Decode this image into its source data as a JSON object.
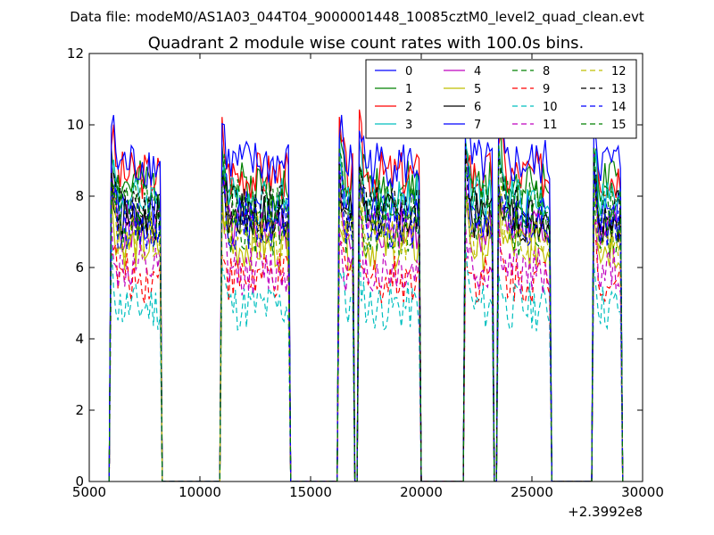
{
  "chart_data": {
    "type": "line",
    "supertitle": "Data file: modeM0/AS1A03_044T04_9000001448_10085cztM0_level2_quad_clean.evt",
    "title": "Quadrant 2 module wise count rates with 100.0s bins.",
    "xlabel": "",
    "ylabel": "",
    "xlim": [
      5000,
      30000
    ],
    "ylim": [
      0,
      12
    ],
    "x_offset_label": "+2.3992e8",
    "xticks": [
      5000,
      10000,
      15000,
      20000,
      25000,
      30000
    ],
    "yticks": [
      0,
      2,
      4,
      6,
      8,
      10,
      12
    ],
    "grid": false,
    "legend": {
      "placement": "top-right",
      "columns": 4
    },
    "gti": [
      [
        6000,
        8200
      ],
      [
        11000,
        14000
      ],
      [
        16300,
        16900
      ],
      [
        17200,
        19900
      ],
      [
        22000,
        23200
      ],
      [
        23500,
        25800
      ],
      [
        27800,
        29000
      ]
    ],
    "series": [
      {
        "name": "0",
        "color": "#0000ff",
        "dash": "solid",
        "level": 7.5,
        "seed": 1
      },
      {
        "name": "1",
        "color": "#008000",
        "dash": "solid",
        "level": 8.3,
        "seed": 2
      },
      {
        "name": "2",
        "color": "#ff0000",
        "dash": "solid",
        "level": 8.6,
        "seed": 3
      },
      {
        "name": "3",
        "color": "#00bfbf",
        "dash": "solid",
        "level": 7.9,
        "seed": 4
      },
      {
        "name": "4",
        "color": "#bf00bf",
        "dash": "solid",
        "level": 7.1,
        "seed": 5
      },
      {
        "name": "5",
        "color": "#bfbf00",
        "dash": "solid",
        "level": 6.6,
        "seed": 6
      },
      {
        "name": "6",
        "color": "#000000",
        "dash": "solid",
        "level": 7.4,
        "seed": 7
      },
      {
        "name": "7",
        "color": "#0000ff",
        "dash": "solid",
        "level": 8.9,
        "seed": 8
      },
      {
        "name": "8",
        "color": "#008000",
        "dash": "dashed",
        "level": 7.0,
        "seed": 9
      },
      {
        "name": "9",
        "color": "#ff0000",
        "dash": "dashed",
        "level": 5.7,
        "seed": 10
      },
      {
        "name": "10",
        "color": "#00bfbf",
        "dash": "dashed",
        "level": 4.9,
        "seed": 11
      },
      {
        "name": "11",
        "color": "#bf00bf",
        "dash": "dashed",
        "level": 5.9,
        "seed": 12
      },
      {
        "name": "12",
        "color": "#bfbf00",
        "dash": "dashed",
        "level": 6.9,
        "seed": 13
      },
      {
        "name": "13",
        "color": "#000000",
        "dash": "dashed",
        "level": 7.6,
        "seed": 14
      },
      {
        "name": "14",
        "color": "#0000ff",
        "dash": "dashed",
        "level": 7.2,
        "seed": 15
      },
      {
        "name": "15",
        "color": "#008000",
        "dash": "dashed",
        "level": 7.8,
        "seed": 16
      }
    ]
  }
}
